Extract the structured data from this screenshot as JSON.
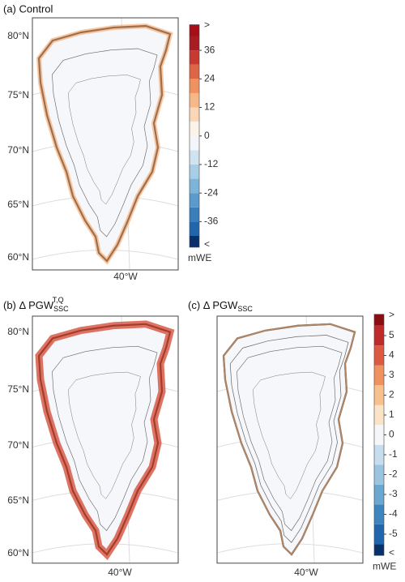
{
  "panels": [
    {
      "title": "(a) Control",
      "lat_labels": [
        "80°N",
        "75°N",
        "70°N",
        "65°N",
        "60°N"
      ],
      "lon_label": "40°W"
    },
    {
      "title": "(b) Δ PGW",
      "title_sub": "SSC",
      "title_sup": "T,Q",
      "lat_labels": [
        "80°N",
        "75°N",
        "70°N",
        "65°N",
        "60°N"
      ],
      "lon_label": "40°W"
    },
    {
      "title": "(c) Δ PGW",
      "title_sub": "SSC",
      "lon_label": "40°W"
    }
  ],
  "colorbars": [
    {
      "ticks": [
        36,
        24,
        12,
        0,
        -12,
        -24,
        -36
      ],
      "lim": [
        -42,
        42
      ],
      "over_label": ">",
      "under_label": "<",
      "unit": "mWE",
      "over_color": "#a50f15",
      "under_color": "#08306b",
      "colors": [
        "#2166ac",
        "#3a7fba",
        "#5a9bcb",
        "#7fb4d9",
        "#a8cde6",
        "#d0e3f0",
        "#f2f6fa",
        "#fbf2ea",
        "#fbd7b5",
        "#f7b888",
        "#ef9260",
        "#dd6445",
        "#c63a31",
        "#a81c24"
      ]
    },
    {
      "ticks": [
        5,
        4,
        3,
        2,
        1,
        0,
        -1,
        -2,
        -3,
        -4,
        -5
      ],
      "lim": [
        -5.5,
        5.5
      ],
      "over_label": ">",
      "under_label": "<",
      "unit": "mWE",
      "over_color": "#8b0d14",
      "under_color": "#08306b",
      "colors": [
        "#2166ac",
        "#3f85bd",
        "#6aa7d1",
        "#9ac4e0",
        "#c6ddee",
        "#f4f6f9",
        "#fbe3c8",
        "#f8c08c",
        "#ef9260",
        "#dc5b40",
        "#bf2a2a"
      ]
    }
  ]
}
